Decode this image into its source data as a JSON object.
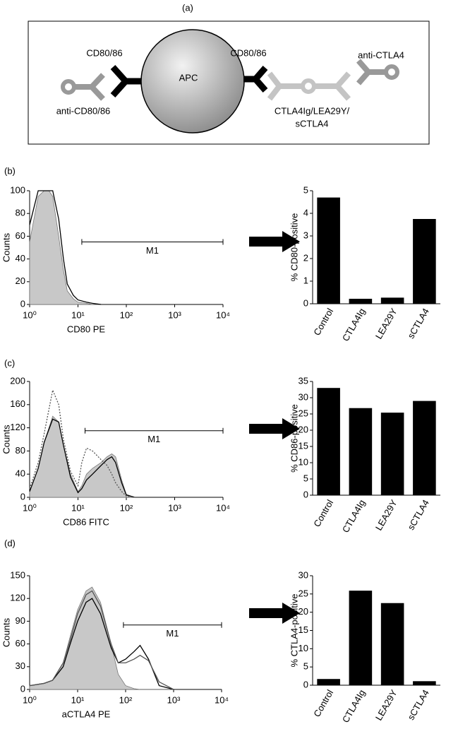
{
  "panels": [
    "(a)",
    "(b)",
    "(c)",
    "(d)"
  ],
  "diagram": {
    "center": "APC",
    "left_receptor": "CD80/86",
    "right_receptor": "CD80/86",
    "left_antibody": "anti-CD80/86",
    "right_antibody": "anti-CTLA4",
    "ligand_line1": "CTLA4Ig/LEA29Y/",
    "ligand_line2": "sCTLA4"
  },
  "chart_data": [
    {
      "type": "line",
      "xscale": "log",
      "ylabel": "Counts",
      "xlabel": "CD80 PE",
      "x": [
        1,
        1.5,
        2,
        2.5,
        3,
        4,
        5,
        6,
        8,
        10,
        15,
        20,
        30
      ],
      "series": [
        {
          "color": "#c8c8c8",
          "fill": true,
          "values": [
            55,
            95,
            100,
            100,
            95,
            60,
            30,
            12,
            5,
            2,
            1,
            0,
            0
          ]
        },
        {
          "color": "#000000",
          "values": [
            70,
            100,
            100,
            100,
            100,
            75,
            40,
            18,
            8,
            4,
            2,
            1,
            0
          ]
        }
      ],
      "xlim": [
        1,
        10000
      ],
      "xticks": [
        {
          "value": 1,
          "label": "10⁰"
        },
        {
          "value": 10,
          "label": "10¹"
        },
        {
          "value": 100,
          "label": "10²"
        },
        {
          "value": 1000,
          "label": "10³"
        },
        {
          "value": 10000,
          "label": "10⁴"
        }
      ],
      "ylim": [
        0,
        100
      ],
      "yticks": [
        0,
        20,
        40,
        60,
        80,
        100
      ],
      "gate": {
        "label": "M1",
        "range": [
          12,
          10000
        ],
        "level": 55
      }
    },
    {
      "type": "line",
      "xscale": "log",
      "ylabel": "Counts",
      "xlabel": "CD86 FITC",
      "x": [
        1,
        1.5,
        2,
        3,
        4,
        5,
        7,
        10,
        12,
        15,
        20,
        30,
        40,
        50,
        60,
        80,
        100,
        150
      ],
      "series": [
        {
          "color": "#c8c8c8",
          "fill": true,
          "values": [
            10,
            50,
            95,
            140,
            130,
            90,
            40,
            10,
            20,
            40,
            50,
            60,
            70,
            75,
            70,
            30,
            5,
            0
          ]
        },
        {
          "color": "#000000",
          "values": [
            10,
            50,
            95,
            135,
            130,
            90,
            35,
            8,
            15,
            30,
            40,
            55,
            65,
            70,
            60,
            25,
            4,
            0
          ]
        },
        {
          "color": "#555555",
          "dash": true,
          "values": [
            15,
            60,
            110,
            185,
            160,
            100,
            45,
            20,
            60,
            85,
            80,
            65,
            55,
            40,
            25,
            10,
            2,
            0
          ]
        }
      ],
      "xlim": [
        1,
        10000
      ],
      "xticks": [
        {
          "value": 1,
          "label": "10⁰"
        },
        {
          "value": 10,
          "label": "10¹"
        },
        {
          "value": 100,
          "label": "10²"
        },
        {
          "value": 1000,
          "label": "10³"
        },
        {
          "value": 10000,
          "label": "10⁴"
        }
      ],
      "ylim": [
        0,
        200
      ],
      "yticks": [
        0,
        40,
        80,
        120,
        160,
        200
      ],
      "gate": {
        "label": "M1",
        "range": [
          14,
          10000
        ],
        "level": 115
      }
    },
    {
      "type": "line",
      "xscale": "log",
      "ylabel": "Counts",
      "xlabel": "aCTLA4 PE",
      "x": [
        1,
        2,
        3,
        5,
        7,
        10,
        15,
        20,
        30,
        50,
        70,
        100,
        150,
        200,
        300,
        500,
        1000
      ],
      "series": [
        {
          "color": "#c8c8c8",
          "fill": true,
          "values": [
            5,
            8,
            12,
            35,
            70,
            105,
            130,
            135,
            115,
            60,
            20,
            5,
            1,
            0,
            0,
            0,
            0
          ]
        },
        {
          "color": "#000000",
          "values": [
            5,
            8,
            12,
            30,
            60,
            90,
            115,
            120,
            100,
            55,
            35,
            40,
            50,
            58,
            40,
            5,
            0
          ]
        },
        {
          "color": "#555555",
          "values": [
            5,
            8,
            12,
            35,
            65,
            100,
            125,
            130,
            110,
            60,
            35,
            35,
            40,
            45,
            38,
            10,
            0
          ]
        }
      ],
      "xlim": [
        1,
        10000
      ],
      "xticks": [
        {
          "value": 1,
          "label": "10⁰"
        },
        {
          "value": 10,
          "label": "10¹"
        },
        {
          "value": 100,
          "label": "10²"
        },
        {
          "value": 1000,
          "label": "10³"
        },
        {
          "value": 10000,
          "label": "10⁴"
        }
      ],
      "ylim": [
        0,
        150
      ],
      "yticks": [
        0,
        30,
        60,
        90,
        120,
        150
      ],
      "gate": {
        "label": "M1",
        "range": [
          90,
          10000
        ],
        "level": 85
      }
    },
    {
      "type": "bar",
      "ylabel": "% CD80-positive",
      "color": "#000000",
      "categories": [
        "Control",
        "CTLA4Ig",
        "LEA29Y",
        "sCTLA4"
      ],
      "values": [
        4.7,
        0.22,
        0.27,
        3.75
      ],
      "ylim": [
        0,
        5
      ],
      "yticks": [
        0,
        1,
        2,
        3,
        4,
        5
      ]
    },
    {
      "type": "bar",
      "ylabel": "% CD86-positive",
      "color": "#000000",
      "categories": [
        "Control",
        "CTLA4Ig",
        "LEA29Y",
        "sCTLA4"
      ],
      "values": [
        33,
        26.8,
        25.4,
        29
      ],
      "ylim": [
        0,
        35
      ],
      "yticks": [
        0,
        5,
        10,
        15,
        20,
        25,
        30,
        35
      ]
    },
    {
      "type": "bar",
      "ylabel": "% CTLA4-positive",
      "color": "#000000",
      "categories": [
        "Control",
        "CTLA4Ig",
        "LEA29Y",
        "sCTLA4"
      ],
      "values": [
        1.7,
        25.9,
        22.5,
        1.1
      ],
      "ylim": [
        0,
        30
      ],
      "yticks": [
        0,
        5,
        10,
        15,
        20,
        25,
        30
      ]
    }
  ]
}
